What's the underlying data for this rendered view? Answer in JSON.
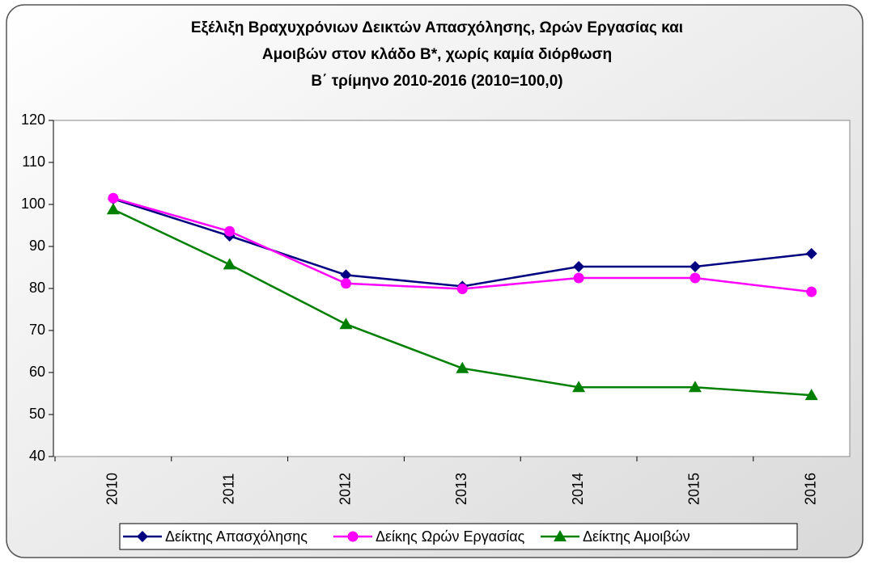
{
  "chart_data": {
    "type": "line",
    "title": [
      "Εξέλιξη Βραχυχρόνιων Δεικτών Απασχόλησης, Ωρών Εργασίας και",
      "Αμοιβών στον κλάδο Β*, χωρίς καμία διόρθωση",
      "Β΄ τρίμηνο 2010-2016 (2010=100,0)"
    ],
    "categories": [
      "2010",
      "2011",
      "2012",
      "2013",
      "2014",
      "2015",
      "2016"
    ],
    "series": [
      {
        "name": "Δείκτης Απασχόλησης",
        "color": "#000080",
        "marker": "diamond",
        "values": [
          101.3,
          92.5,
          83.2,
          80.5,
          85.2,
          85.2,
          88.3
        ]
      },
      {
        "name": "Δείκης Ωρών Εργασίας",
        "color": "#ff00ff",
        "marker": "circle",
        "values": [
          101.5,
          93.6,
          81.2,
          79.9,
          82.5,
          82.5,
          79.2
        ]
      },
      {
        "name": "Δείκτης Αμοιβών",
        "color": "#008000",
        "marker": "triangle",
        "values": [
          98.8,
          85.7,
          71.5,
          61.0,
          56.5,
          56.5,
          54.6
        ]
      }
    ],
    "ylim": [
      40,
      120
    ],
    "yticks": [
      40,
      50,
      60,
      70,
      80,
      90,
      100,
      110,
      120
    ],
    "legend": "bottom"
  }
}
